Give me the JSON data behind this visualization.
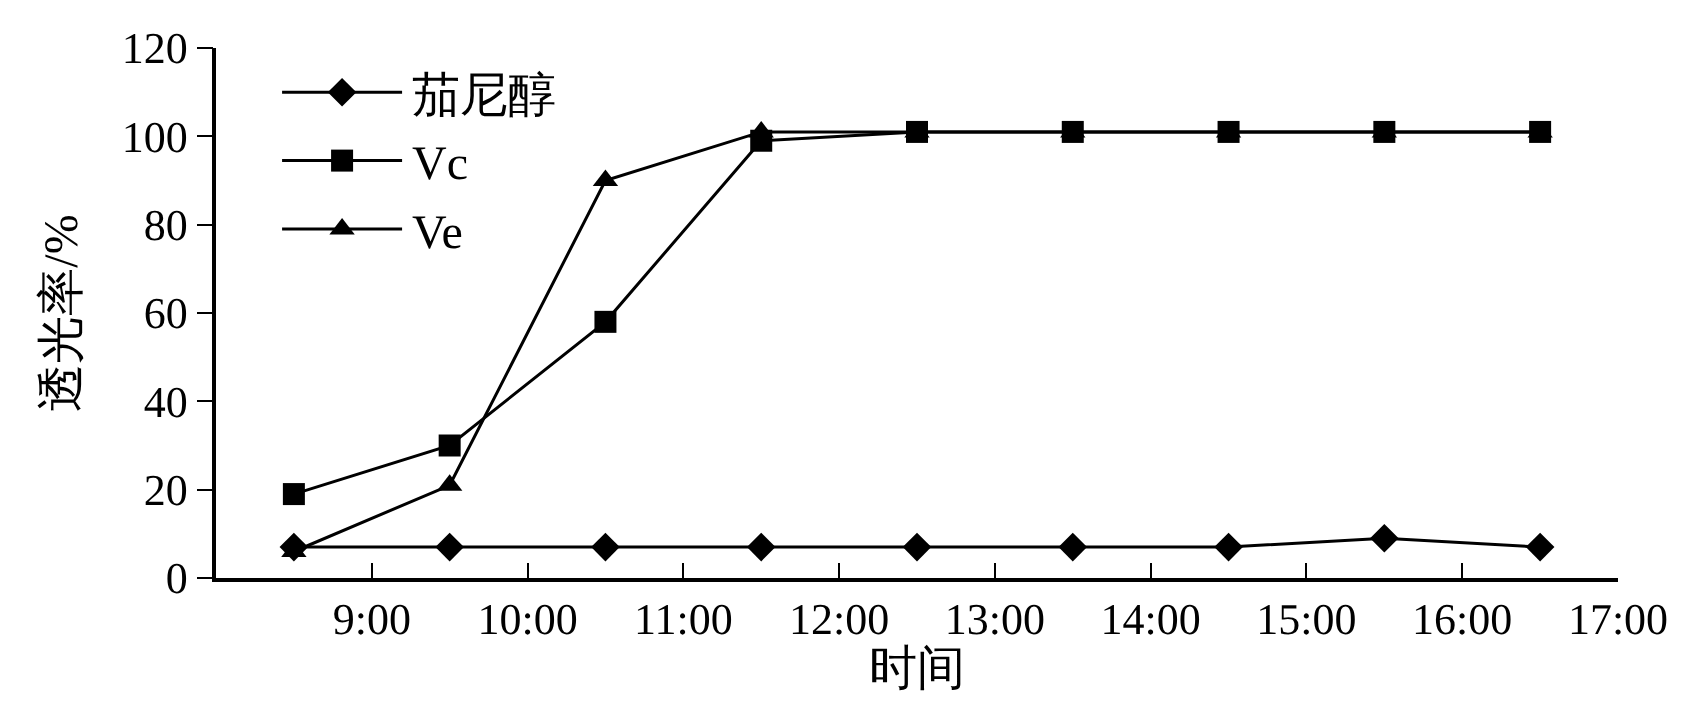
{
  "chart_data": {
    "type": "line",
    "xlabel": "时间",
    "ylabel": "透光率/%",
    "x": [
      8.5,
      9.5,
      10.5,
      11.5,
      12.5,
      13.5,
      14.5,
      15.5,
      16.5
    ],
    "xlim": [
      8,
      17
    ],
    "xticks": [
      {
        "value": 9,
        "label": "9:00"
      },
      {
        "value": 10,
        "label": "10:00"
      },
      {
        "value": 11,
        "label": "11:00"
      },
      {
        "value": 12,
        "label": "12:00"
      },
      {
        "value": 13,
        "label": "13:00"
      },
      {
        "value": 14,
        "label": "14:00"
      },
      {
        "value": 15,
        "label": "15:00"
      },
      {
        "value": 16,
        "label": "16:00"
      },
      {
        "value": 17,
        "label": "17:00"
      }
    ],
    "ylim": [
      0,
      120
    ],
    "yticks": [
      0,
      20,
      40,
      60,
      80,
      100,
      120
    ],
    "legend": "top left",
    "line_style": "solid",
    "series": [
      {
        "name": "茄尼醇",
        "color": "#000000",
        "marker": "diamond",
        "values": [
          7,
          7,
          7,
          7,
          7,
          7,
          7,
          9,
          7
        ]
      },
      {
        "name": "Vc",
        "color": "#000000",
        "marker": "square",
        "values": [
          19,
          30,
          58,
          99,
          101,
          101,
          101,
          101,
          101
        ]
      },
      {
        "name": "Ve",
        "color": "#000000",
        "marker": "triangle",
        "values": [
          6,
          21,
          90,
          101,
          101,
          101,
          101,
          101,
          101
        ]
      }
    ]
  }
}
